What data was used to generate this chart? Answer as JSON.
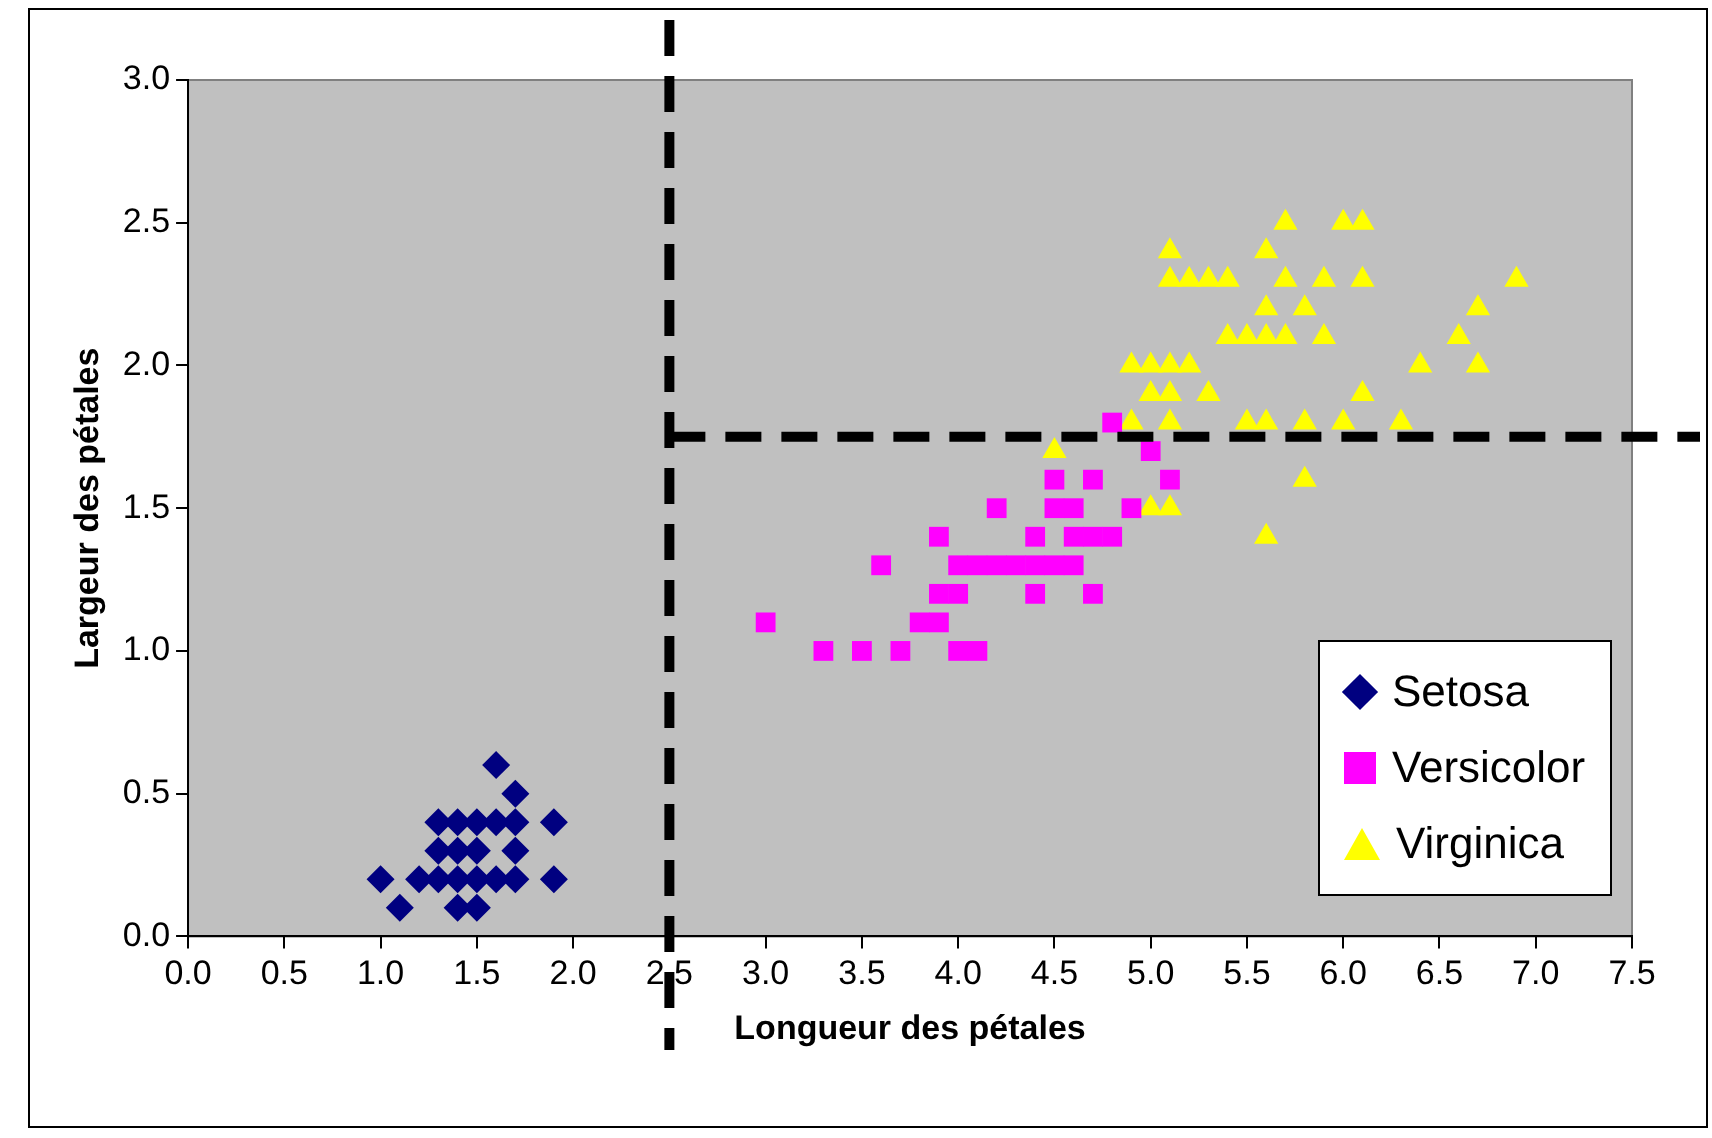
{
  "chart_data": {
    "type": "scatter",
    "xlabel": "Longueur des pétales",
    "ylabel": "Largeur des pétales",
    "xlim": [
      0,
      7.5
    ],
    "xticks": [
      {
        "value": 0,
        "label": "0.0"
      },
      {
        "value": 0.5,
        "label": "0.5"
      },
      {
        "value": 1,
        "label": "1.0"
      },
      {
        "value": 1.5,
        "label": "1.5"
      },
      {
        "value": 2,
        "label": "2.0"
      },
      {
        "value": 2.5,
        "label": "2.5"
      },
      {
        "value": 3,
        "label": "3.0"
      },
      {
        "value": 3.5,
        "label": "3.5"
      },
      {
        "value": 4,
        "label": "4.0"
      },
      {
        "value": 4.5,
        "label": "4.5"
      },
      {
        "value": 5,
        "label": "5.0"
      },
      {
        "value": 5.5,
        "label": "5.5"
      },
      {
        "value": 6,
        "label": "6.0"
      },
      {
        "value": 6.5,
        "label": "6.5"
      },
      {
        "value": 7,
        "label": "7.0"
      },
      {
        "value": 7.5,
        "label": "7.5"
      }
    ],
    "ylim": [
      0,
      3
    ],
    "yticks": [
      {
        "value": 0,
        "label": "0.0"
      },
      {
        "value": 0.5,
        "label": "0.5"
      },
      {
        "value": 1,
        "label": "1.0"
      },
      {
        "value": 1.5,
        "label": "1.5"
      },
      {
        "value": 2,
        "label": "2.0"
      },
      {
        "value": 2.5,
        "label": "2.5"
      },
      {
        "value": 3,
        "label": "3.0"
      }
    ],
    "grid": false,
    "legend": "bottom right",
    "ref_lines": [
      {
        "axis": "x",
        "value": 2.5,
        "color": "#000000",
        "line_style": "dashed"
      },
      {
        "axis": "y",
        "value": 1.75,
        "color": "#000000",
        "line_style": "dashed"
      }
    ],
    "series": [
      {
        "name": "Setosa",
        "color": "#000080",
        "marker": "diamond",
        "x": [
          1.4,
          1.3,
          1.5,
          1.7,
          1.4,
          1.5,
          1.6,
          1.4,
          1.1,
          1.2,
          1.5,
          1.3,
          1.7,
          1.5,
          1.0,
          1.7,
          1.9,
          1.6,
          1.6,
          1.9,
          1.3,
          1.4,
          1.7
        ],
        "values": [
          0.2,
          0.2,
          0.2,
          0.4,
          0.3,
          0.1,
          0.2,
          0.1,
          0.1,
          0.2,
          0.4,
          0.4,
          0.3,
          0.3,
          0.2,
          0.5,
          0.2,
          0.4,
          0.6,
          0.4,
          0.3,
          0.4,
          0.2
        ]
      },
      {
        "name": "Versicolor",
        "color": "#ff00ff",
        "marker": "square",
        "x": [
          4.7,
          4.5,
          4.9,
          4.0,
          4.6,
          4.5,
          4.7,
          3.3,
          4.6,
          3.9,
          3.5,
          4.2,
          4.0,
          3.6,
          4.4,
          4.1,
          3.9,
          4.8,
          4.7,
          4.3,
          4.8,
          5.0,
          3.8,
          3.7,
          3.9,
          5.1,
          4.5,
          4.4,
          4.1,
          4.4,
          4.6,
          4.0,
          4.2,
          3.0
        ],
        "values": [
          1.4,
          1.5,
          1.5,
          1.3,
          1.5,
          1.3,
          1.6,
          1.0,
          1.3,
          1.4,
          1.0,
          1.5,
          1.0,
          1.3,
          1.4,
          1.0,
          1.1,
          1.8,
          1.2,
          1.3,
          1.4,
          1.7,
          1.1,
          1.0,
          1.2,
          1.6,
          1.6,
          1.3,
          1.3,
          1.2,
          1.4,
          1.2,
          1.3,
          1.1
        ]
      },
      {
        "name": "Virginica",
        "color": "#ffff00",
        "marker": "triangle",
        "x": [
          6.0,
          5.1,
          5.9,
          5.6,
          5.8,
          6.6,
          4.5,
          6.3,
          5.8,
          6.1,
          5.1,
          5.3,
          5.5,
          5.0,
          5.1,
          5.3,
          5.5,
          6.7,
          6.9,
          5.0,
          5.7,
          4.9,
          6.7,
          4.9,
          5.7,
          6.0,
          5.6,
          5.8,
          6.1,
          6.4,
          5.6,
          5.1,
          5.6,
          6.1,
          5.6,
          5.4,
          5.1,
          5.9,
          5.7,
          5.2,
          5.0,
          5.2,
          5.4,
          5.1
        ],
        "values": [
          2.5,
          1.9,
          2.1,
          1.8,
          2.2,
          2.1,
          1.7,
          1.8,
          1.8,
          2.5,
          2.0,
          1.9,
          2.1,
          2.0,
          2.4,
          2.3,
          1.8,
          2.2,
          2.3,
          1.5,
          2.3,
          2.0,
          2.0,
          1.8,
          2.1,
          1.8,
          2.1,
          1.6,
          1.9,
          2.0,
          2.2,
          1.5,
          1.4,
          2.3,
          2.4,
          2.1,
          2.3,
          2.3,
          2.5,
          2.3,
          1.9,
          2.0,
          2.3,
          1.8
        ]
      }
    ]
  }
}
